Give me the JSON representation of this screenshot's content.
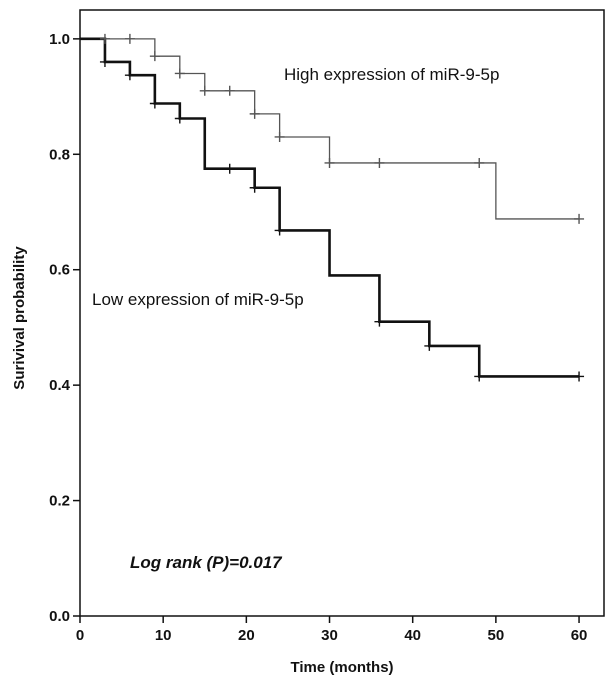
{
  "chart_data": {
    "type": "line",
    "subtype": "kaplan-meier",
    "xlabel": "Time (months)",
    "ylabel": "Surivival probability",
    "xlim": [
      0,
      63
    ],
    "ylim": [
      0,
      1.05
    ],
    "x_ticks": [
      0,
      10,
      20,
      30,
      40,
      50,
      60
    ],
    "x_tick_labels": [
      "0",
      "10",
      "20",
      "30",
      "40",
      "50",
      "60"
    ],
    "y_ticks": [
      0.0,
      0.2,
      0.4,
      0.6,
      0.8,
      1.0
    ],
    "y_tick_labels": [
      "0.0",
      "0.2",
      "0.4",
      "0.6",
      "0.8",
      "1.0"
    ],
    "grid": false,
    "annotation": "Log rank (P)=0.017",
    "series": [
      {
        "name": "High expression of miR-9-5p",
        "color": "#555555",
        "steps": [
          {
            "x": 0,
            "y": 1.0
          },
          {
            "x": 9,
            "y": 0.97
          },
          {
            "x": 12,
            "y": 0.94
          },
          {
            "x": 15,
            "y": 0.91
          },
          {
            "x": 21,
            "y": 0.87
          },
          {
            "x": 24,
            "y": 0.83
          },
          {
            "x": 30,
            "y": 0.785
          },
          {
            "x": 50,
            "y": 0.688
          }
        ],
        "end_x": 60,
        "censored": [
          {
            "x": 3,
            "y": 1.0
          },
          {
            "x": 6,
            "y": 1.0
          },
          {
            "x": 9,
            "y": 0.97
          },
          {
            "x": 12,
            "y": 0.94
          },
          {
            "x": 15,
            "y": 0.91
          },
          {
            "x": 18,
            "y": 0.91
          },
          {
            "x": 21,
            "y": 0.87
          },
          {
            "x": 24,
            "y": 0.83
          },
          {
            "x": 30,
            "y": 0.785
          },
          {
            "x": 36,
            "y": 0.785
          },
          {
            "x": 48,
            "y": 0.785
          },
          {
            "x": 60,
            "y": 0.688
          }
        ]
      },
      {
        "name": "Low expression of miR-9-5p",
        "color": "#111111",
        "steps": [
          {
            "x": 0,
            "y": 1.0
          },
          {
            "x": 3,
            "y": 0.96
          },
          {
            "x": 6,
            "y": 0.937
          },
          {
            "x": 9,
            "y": 0.888
          },
          {
            "x": 12,
            "y": 0.862
          },
          {
            "x": 15,
            "y": 0.775
          },
          {
            "x": 21,
            "y": 0.742
          },
          {
            "x": 24,
            "y": 0.668
          },
          {
            "x": 30,
            "y": 0.59
          },
          {
            "x": 36,
            "y": 0.51
          },
          {
            "x": 42,
            "y": 0.468
          },
          {
            "x": 48,
            "y": 0.415
          }
        ],
        "end_x": 60,
        "censored": [
          {
            "x": 3,
            "y": 0.96
          },
          {
            "x": 6,
            "y": 0.937
          },
          {
            "x": 9,
            "y": 0.888
          },
          {
            "x": 12,
            "y": 0.862
          },
          {
            "x": 18,
            "y": 0.775
          },
          {
            "x": 21,
            "y": 0.742
          },
          {
            "x": 24,
            "y": 0.668
          },
          {
            "x": 36,
            "y": 0.51
          },
          {
            "x": 42,
            "y": 0.468
          },
          {
            "x": 48,
            "y": 0.415
          },
          {
            "x": 60,
            "y": 0.415
          }
        ]
      }
    ]
  }
}
